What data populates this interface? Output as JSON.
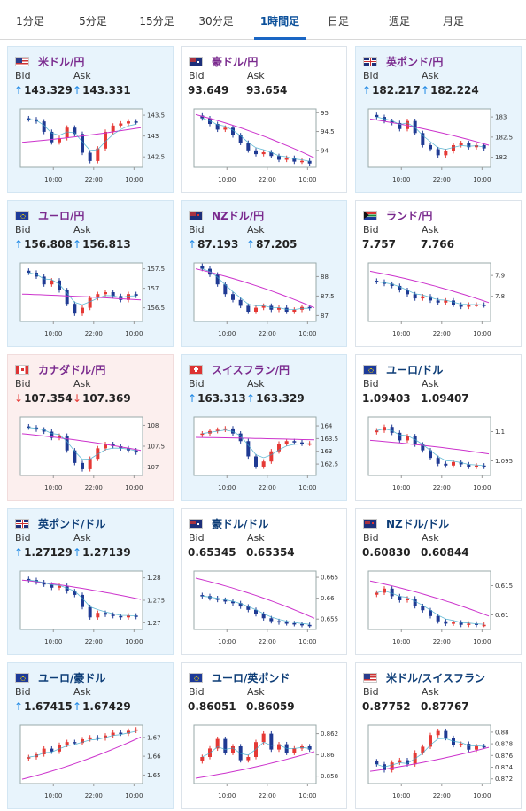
{
  "tabs": [
    {
      "label": "1分足",
      "active": false
    },
    {
      "label": "5分足",
      "active": false
    },
    {
      "label": "15分足",
      "active": false
    },
    {
      "label": "30分足",
      "active": false
    },
    {
      "label": "1時間足",
      "active": true
    },
    {
      "label": "日足",
      "active": false
    },
    {
      "label": "週足",
      "active": false
    },
    {
      "label": "月足",
      "active": false
    }
  ],
  "bid_label": "Bid",
  "ask_label": "Ask",
  "x_ticks": [
    "10:00",
    "22:00",
    "10:00"
  ],
  "colors": {
    "up": "#e53935",
    "down": "#1f3a93",
    "ma": "#cc33cc",
    "ma_short": "#3aa7c9",
    "arrow_up": "#1e88e5",
    "arrow_down": "#e53935"
  },
  "cards": [
    {
      "pair": "米ドル/円",
      "flag": "us",
      "style": "blue",
      "name_color": "purple",
      "dir": "up",
      "bid": "143.329",
      "ask": "143.331",
      "y_ticks": [
        "143.5",
        "143",
        "142.5"
      ],
      "ylim": [
        142.25,
        143.65
      ],
      "closes": [
        143.4,
        143.35,
        143.1,
        142.85,
        142.95,
        143.2,
        143.05,
        142.6,
        142.4,
        142.7,
        143.1,
        143.25,
        143.3,
        143.35,
        143.33
      ],
      "ma_start": 142.85,
      "ma_end": 143.2
    },
    {
      "pair": "豪ドル/円",
      "flag": "au",
      "style": "white",
      "name_color": "purple",
      "dir": "none",
      "bid": "93.649",
      "ask": "93.654",
      "y_ticks": [
        "95",
        "94.5",
        "94"
      ],
      "ylim": [
        93.55,
        95.1
      ],
      "closes": [
        94.85,
        94.7,
        94.55,
        94.6,
        94.4,
        94.2,
        94.0,
        93.9,
        93.95,
        93.85,
        93.75,
        93.8,
        93.7,
        93.72,
        93.65
      ],
      "ma_start": 94.95,
      "ma_end": 93.8
    },
    {
      "pair": "英ポンド/円",
      "flag": "gb",
      "style": "blue",
      "name_color": "purple",
      "dir": "up",
      "bid": "182.217",
      "ask": "182.224",
      "y_ticks": [
        "183",
        "182.5",
        "182"
      ],
      "ylim": [
        181.75,
        183.2
      ],
      "closes": [
        183.0,
        182.9,
        182.85,
        182.7,
        182.9,
        182.6,
        182.3,
        182.2,
        182.05,
        182.15,
        182.3,
        182.35,
        182.25,
        182.3,
        182.22
      ],
      "ma_start": 182.95,
      "ma_end": 182.3
    },
    {
      "pair": "ユーロ/円",
      "flag": "eu",
      "style": "blue",
      "name_color": "purple",
      "dir": "up",
      "bid": "156.808",
      "ask": "156.813",
      "y_ticks": [
        "157.5",
        "157",
        "156.5"
      ],
      "ylim": [
        156.15,
        157.65
      ],
      "closes": [
        157.4,
        157.3,
        157.1,
        157.2,
        156.95,
        156.6,
        156.35,
        156.5,
        156.75,
        156.85,
        156.9,
        156.8,
        156.7,
        156.85,
        156.81
      ],
      "ma_start": 156.85,
      "ma_end": 156.7
    },
    {
      "pair": "NZドル/円",
      "flag": "nz",
      "style": "blue",
      "name_color": "purple",
      "dir": "up",
      "bid": "87.193",
      "ask": "87.205",
      "y_ticks": [
        "88",
        "87.5",
        "87"
      ],
      "ylim": [
        86.85,
        88.35
      ],
      "closes": [
        88.2,
        88.05,
        87.8,
        87.55,
        87.4,
        87.25,
        87.1,
        87.2,
        87.25,
        87.15,
        87.2,
        87.1,
        87.15,
        87.22,
        87.19
      ],
      "ma_start": 88.2,
      "ma_end": 87.2
    },
    {
      "pair": "ランド/円",
      "flag": "za",
      "style": "white",
      "name_color": "purple",
      "dir": "none",
      "bid": "7.757",
      "ask": "7.766",
      "y_ticks": [
        "7.9",
        "7.8"
      ],
      "ylim": [
        7.68,
        7.96
      ],
      "closes": [
        7.87,
        7.86,
        7.85,
        7.83,
        7.81,
        7.79,
        7.8,
        7.78,
        7.77,
        7.78,
        7.76,
        7.75,
        7.76,
        7.76,
        7.757
      ],
      "ma_start": 7.92,
      "ma_end": 7.77
    },
    {
      "pair": "カナダドル/円",
      "flag": "ca",
      "style": "pink",
      "name_color": "purple",
      "dir": "down",
      "bid": "107.354",
      "ask": "107.369",
      "y_ticks": [
        "108",
        "107.5",
        "107"
      ],
      "ylim": [
        106.8,
        108.2
      ],
      "closes": [
        107.95,
        107.9,
        107.85,
        107.7,
        107.75,
        107.4,
        107.1,
        106.95,
        107.2,
        107.45,
        107.55,
        107.5,
        107.45,
        107.4,
        107.35
      ],
      "ma_start": 107.8,
      "ma_end": 107.4
    },
    {
      "pair": "スイスフラン/円",
      "flag": "ch",
      "style": "blue",
      "name_color": "purple",
      "dir": "up",
      "bid": "163.313",
      "ask": "163.329",
      "y_ticks": [
        "164",
        "163.5",
        "163",
        "162.5"
      ],
      "ylim": [
        162.05,
        164.35
      ],
      "closes": [
        163.7,
        163.8,
        163.85,
        163.9,
        163.7,
        163.4,
        162.8,
        162.4,
        162.6,
        163.0,
        163.3,
        163.4,
        163.35,
        163.3,
        163.31
      ],
      "ma_start": 163.55,
      "ma_end": 163.45
    },
    {
      "pair": "ユーロ/ドル",
      "flag": "eu",
      "style": "white",
      "name_color": "navy",
      "dir": "none",
      "bid": "1.09403",
      "ask": "1.09407",
      "y_ticks": [
        "1.1",
        "1.095"
      ],
      "ylim": [
        1.0925,
        1.1025
      ],
      "closes": [
        1.1002,
        1.1008,
        1.0998,
        1.0985,
        1.0992,
        1.0978,
        1.0968,
        1.0955,
        1.0945,
        1.0942,
        1.0948,
        1.0944,
        1.094,
        1.0942,
        1.094
      ],
      "ma_start": 1.0985,
      "ma_end": 1.0962
    },
    {
      "pair": "英ポンド/ドル",
      "flag": "gb",
      "style": "blue",
      "name_color": "navy",
      "dir": "up",
      "bid": "1.27129",
      "ask": "1.27139",
      "y_ticks": [
        "1.28",
        "1.275",
        "1.27"
      ],
      "ylim": [
        1.2685,
        1.2815
      ],
      "closes": [
        1.2795,
        1.279,
        1.2785,
        1.2778,
        1.2782,
        1.277,
        1.2762,
        1.2735,
        1.2712,
        1.2722,
        1.2718,
        1.2715,
        1.2712,
        1.2716,
        1.2713
      ],
      "ma_start": 1.2795,
      "ma_end": 1.2752
    },
    {
      "pair": "豪ドル/ドル",
      "flag": "au",
      "style": "white",
      "name_color": "navy",
      "dir": "none",
      "bid": "0.65345",
      "ask": "0.65354",
      "y_ticks": [
        "0.665",
        "0.66",
        "0.655"
      ],
      "ylim": [
        0.6525,
        0.6665
      ],
      "closes": [
        0.6605,
        0.66,
        0.6596,
        0.6592,
        0.6588,
        0.658,
        0.6572,
        0.6562,
        0.6552,
        0.6545,
        0.6542,
        0.654,
        0.6538,
        0.6536,
        0.6535
      ],
      "ma_start": 0.6648,
      "ma_end": 0.6552
    },
    {
      "pair": "NZドル/ドル",
      "flag": "nz",
      "style": "white",
      "name_color": "navy",
      "dir": "none",
      "bid": "0.60830",
      "ask": "0.60844",
      "y_ticks": [
        "0.615",
        "0.61"
      ],
      "ylim": [
        0.6075,
        0.6175
      ],
      "closes": [
        0.6138,
        0.6145,
        0.6132,
        0.6125,
        0.6128,
        0.6115,
        0.6108,
        0.6098,
        0.6089,
        0.6085,
        0.6087,
        0.6083,
        0.6085,
        0.6083,
        0.6083
      ],
      "ma_start": 0.6158,
      "ma_end": 0.6098
    },
    {
      "pair": "ユーロ/豪ドル",
      "flag": "eu",
      "style": "blue",
      "name_color": "navy",
      "dir": "up",
      "bid": "1.67415",
      "ask": "1.67429",
      "y_ticks": [
        "1.67",
        "1.66",
        "1.65"
      ],
      "ylim": [
        1.6455,
        1.6765
      ],
      "closes": [
        1.6595,
        1.661,
        1.664,
        1.6625,
        1.666,
        1.6675,
        1.667,
        1.669,
        1.67,
        1.6695,
        1.671,
        1.6725,
        1.672,
        1.6735,
        1.6742
      ],
      "ma_start": 1.6478,
      "ma_end": 1.6702
    },
    {
      "pair": "ユーロ/英ポンド",
      "flag": "eu",
      "style": "white",
      "name_color": "navy",
      "dir": "none",
      "bid": "0.86051",
      "ask": "0.86059",
      "y_ticks": [
        "0.862",
        "0.86",
        "0.858"
      ],
      "ylim": [
        0.8573,
        0.8628
      ],
      "closes": [
        0.8598,
        0.8606,
        0.8615,
        0.8602,
        0.8608,
        0.8595,
        0.8598,
        0.8612,
        0.862,
        0.8605,
        0.861,
        0.8602,
        0.8606,
        0.8608,
        0.8605
      ],
      "ma_start": 0.8578,
      "ma_end": 0.8603
    },
    {
      "pair": "米ドル/スイスフラン",
      "flag": "us",
      "style": "white",
      "name_color": "navy",
      "dir": "none",
      "bid": "0.87752",
      "ask": "0.87767",
      "y_ticks": [
        "0.88",
        "0.878",
        "0.876",
        "0.874",
        "0.872"
      ],
      "ylim": [
        0.8712,
        0.8812
      ],
      "closes": [
        0.8745,
        0.8735,
        0.8748,
        0.8752,
        0.8745,
        0.8765,
        0.8775,
        0.8795,
        0.8802,
        0.879,
        0.8778,
        0.878,
        0.877,
        0.8776,
        0.8775
      ],
      "ma_start": 0.8733,
      "ma_end": 0.8774
    }
  ]
}
